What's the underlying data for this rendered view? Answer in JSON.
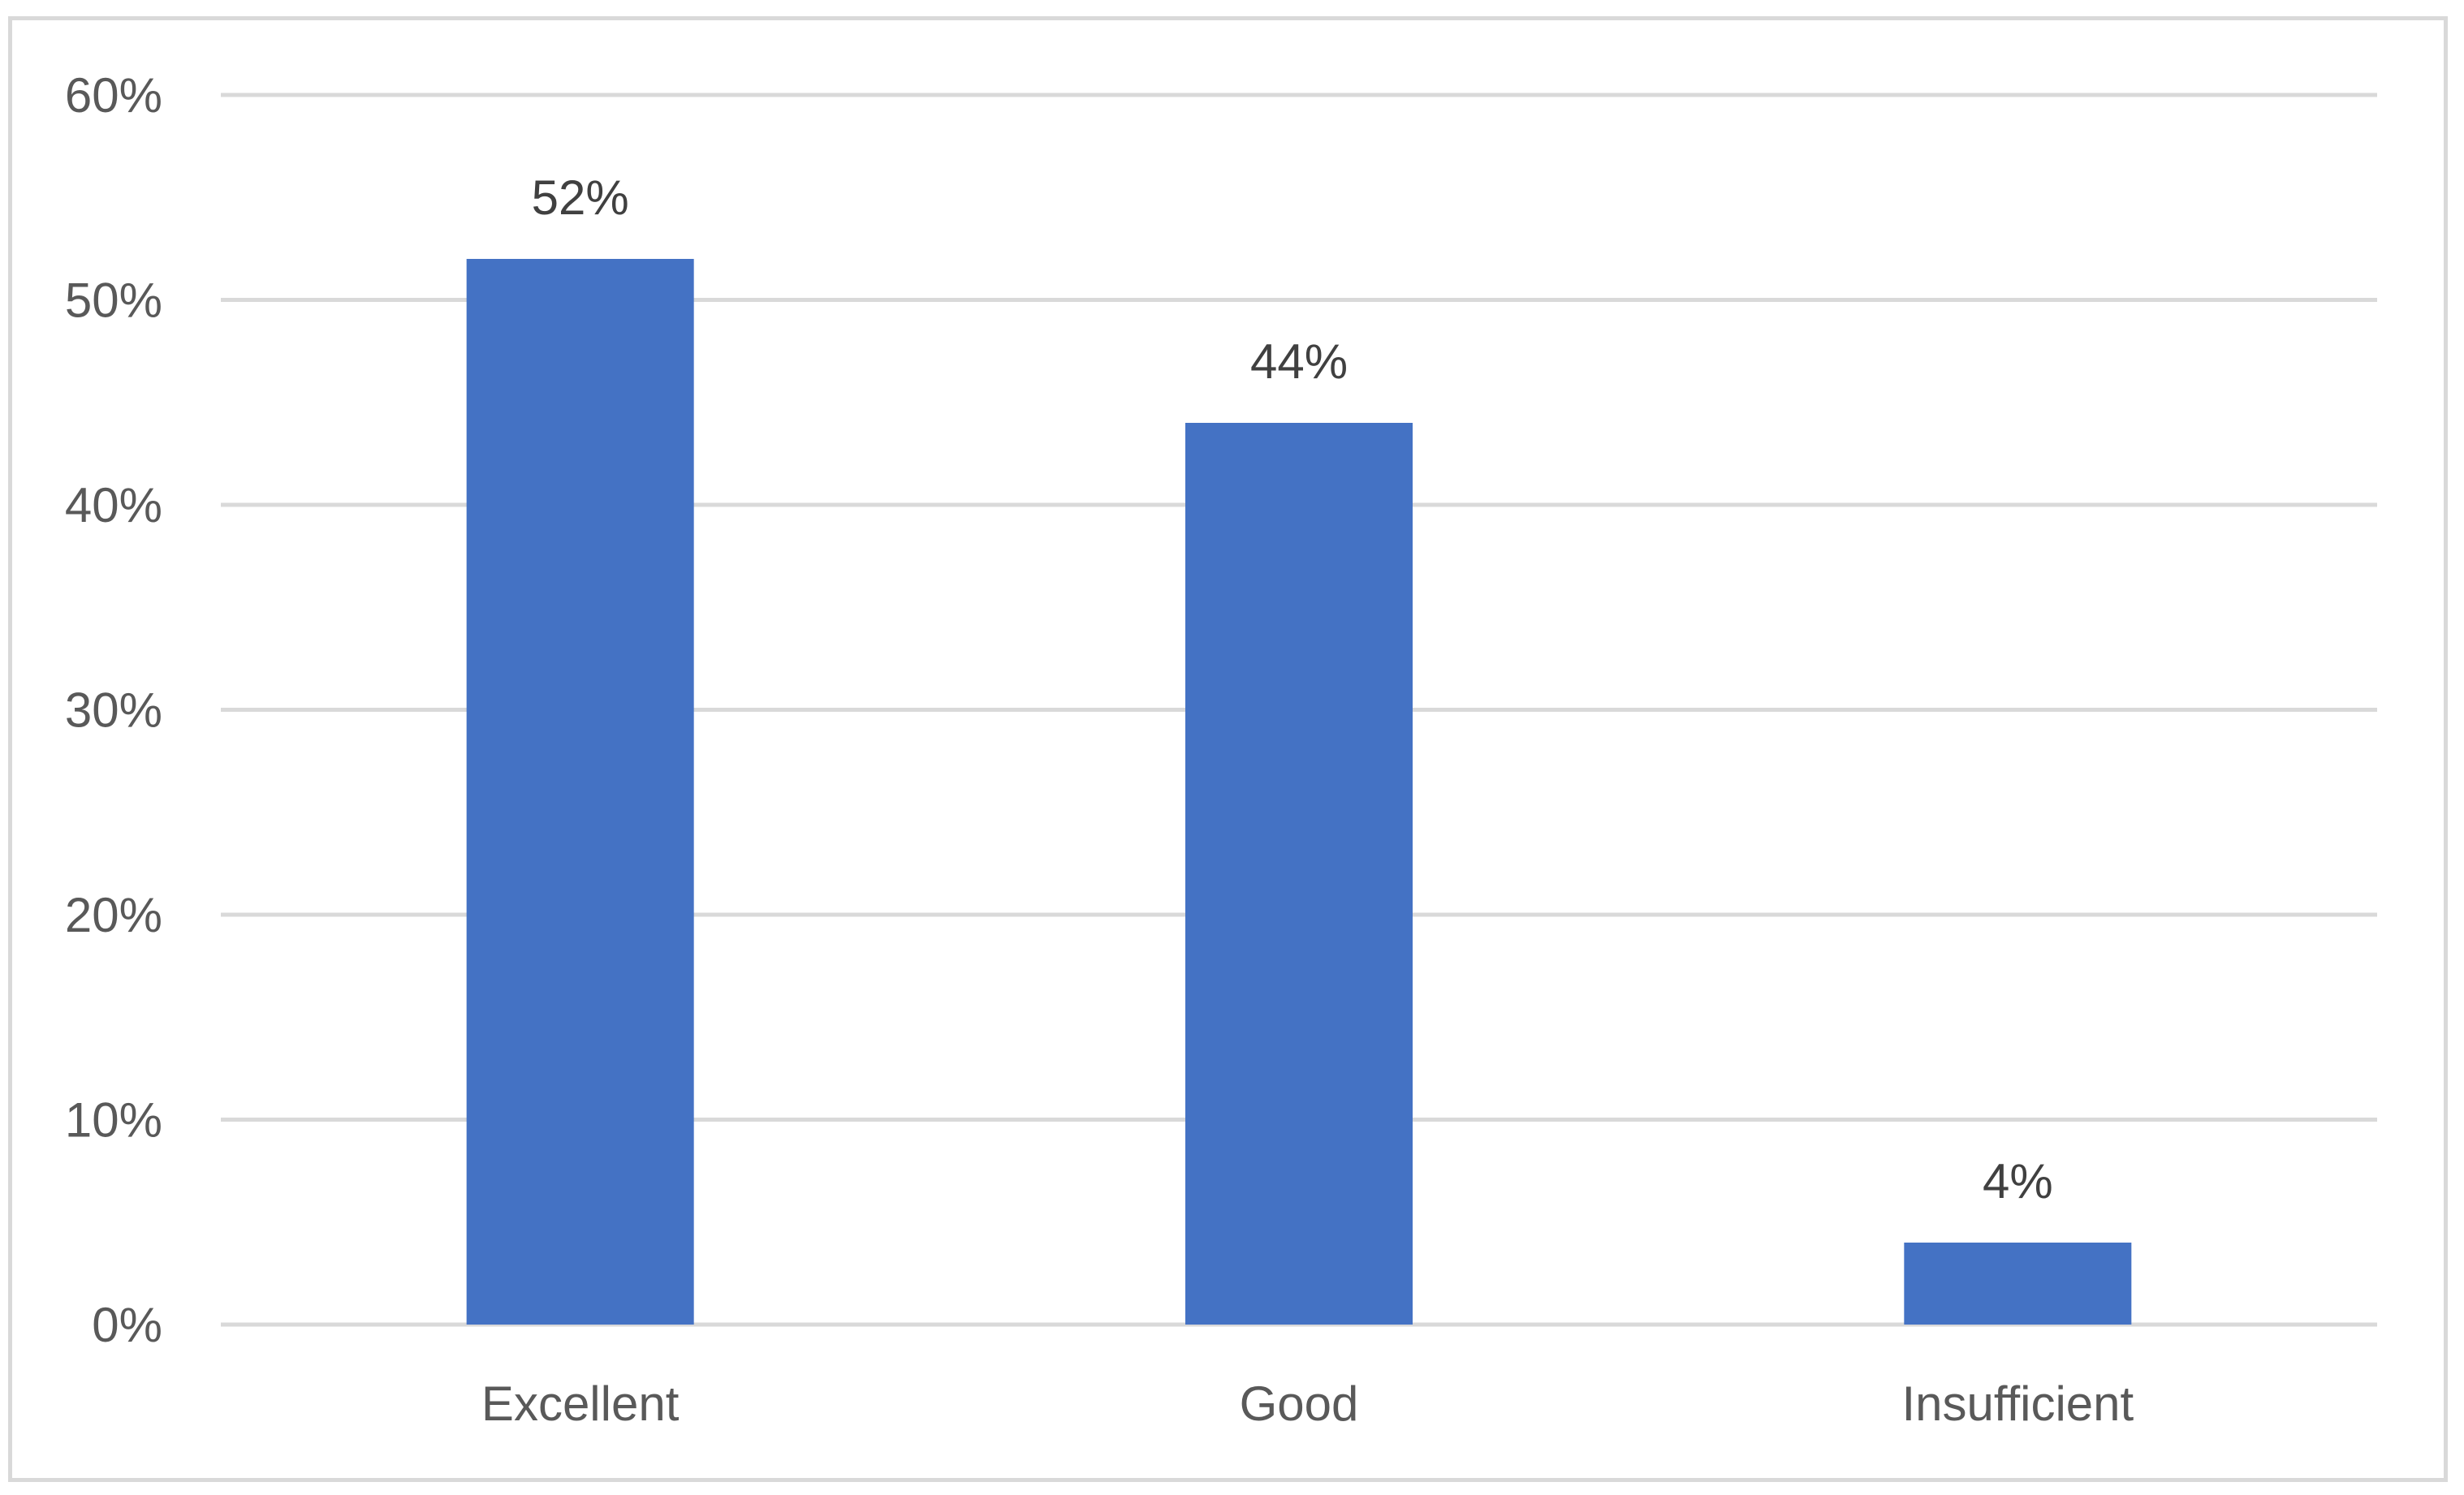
{
  "chart_data": {
    "type": "bar",
    "categories": [
      "Excellent",
      "Good",
      "Insufficient"
    ],
    "values": [
      52,
      44,
      4
    ],
    "data_labels": [
      "52%",
      "44%",
      "4%"
    ],
    "ylim": [
      0,
      60
    ],
    "yticks": [
      0,
      10,
      20,
      30,
      40,
      50,
      60
    ],
    "ytick_labels": [
      "0%",
      "10%",
      "20%",
      "30%",
      "40%",
      "50%",
      "60%"
    ],
    "title": "",
    "xlabel": "",
    "ylabel": "",
    "grid": true,
    "legend": "none",
    "bar_color": "#4472c4"
  }
}
